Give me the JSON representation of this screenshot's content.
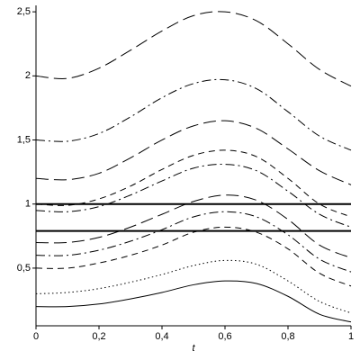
{
  "chart_data": {
    "type": "line",
    "xlabel": "t",
    "x": [
      0,
      0.1,
      0.2,
      0.3,
      0.4,
      0.5,
      0.6,
      0.7,
      0.8,
      0.9,
      1
    ],
    "xlim": [
      0,
      1
    ],
    "xticks": [
      0,
      {
        "value": 0.2,
        "label": "0,2"
      },
      {
        "value": 0.4,
        "label": "0,4"
      },
      {
        "value": 0.6,
        "label": "0,6"
      },
      {
        "value": 0.8,
        "label": "0,8"
      },
      1
    ],
    "ylim": [
      0.05,
      2.55
    ],
    "yticks": [
      {
        "value": 0.5,
        "label": "0,5"
      },
      1,
      {
        "value": 1.5,
        "label": "1,5"
      },
      2,
      {
        "value": 2.5,
        "label": "2,5"
      }
    ],
    "series": [
      {
        "color": "#000000",
        "linestyle": "solid",
        "values": [
          0.2,
          0.2,
          0.22,
          0.26,
          0.31,
          0.37,
          0.4,
          0.38,
          0.28,
          0.14,
          0.08
        ]
      },
      {
        "color": "#000000",
        "linestyle": "dotted",
        "values": [
          0.3,
          0.31,
          0.34,
          0.39,
          0.45,
          0.52,
          0.56,
          0.53,
          0.4,
          0.24,
          0.15
        ]
      },
      {
        "color": "#000000",
        "linestyle": "dashed",
        "values": [
          0.5,
          0.5,
          0.54,
          0.6,
          0.68,
          0.78,
          0.82,
          0.78,
          0.65,
          0.46,
          0.36
        ]
      },
      {
        "color": "#000000",
        "linestyle": "dashdot",
        "values": [
          0.6,
          0.6,
          0.64,
          0.71,
          0.8,
          0.9,
          0.94,
          0.9,
          0.76,
          0.57,
          0.47
        ]
      },
      {
        "color": "#000000",
        "linestyle": "longdash",
        "values": [
          0.7,
          0.7,
          0.74,
          0.82,
          0.92,
          1.02,
          1.07,
          1.03,
          0.88,
          0.68,
          0.58
        ]
      },
      {
        "color": "#000000",
        "linestyle": "dashdot",
        "values": [
          0.95,
          0.94,
          0.98,
          1.07,
          1.18,
          1.28,
          1.31,
          1.26,
          1.1,
          0.92,
          0.82
        ]
      },
      {
        "color": "#000000",
        "linestyle": "dashed",
        "values": [
          1.0,
          0.99,
          1.04,
          1.14,
          1.27,
          1.38,
          1.42,
          1.37,
          1.2,
          1.0,
          0.9
        ]
      },
      {
        "color": "#000000",
        "linestyle": "longdash",
        "values": [
          1.2,
          1.19,
          1.24,
          1.36,
          1.5,
          1.61,
          1.65,
          1.59,
          1.43,
          1.26,
          1.15
        ]
      },
      {
        "color": "#000000",
        "linestyle": "dashdot",
        "values": [
          1.5,
          1.49,
          1.55,
          1.68,
          1.83,
          1.94,
          1.97,
          1.9,
          1.72,
          1.53,
          1.42
        ]
      },
      {
        "color": "#000000",
        "linestyle": "longdash",
        "values": [
          2.0,
          1.98,
          2.06,
          2.2,
          2.35,
          2.47,
          2.5,
          2.43,
          2.25,
          2.05,
          1.92
        ]
      },
      {
        "color": "#000000",
        "linestyle": "thick",
        "values": [
          1,
          1,
          1,
          1,
          1,
          1,
          1,
          1,
          1,
          1,
          1
        ]
      },
      {
        "color": "#000000",
        "linestyle": "thick",
        "values": [
          0.79,
          0.79,
          0.79,
          0.79,
          0.79,
          0.79,
          0.79,
          0.79,
          0.79,
          0.79,
          0.79
        ]
      }
    ]
  }
}
